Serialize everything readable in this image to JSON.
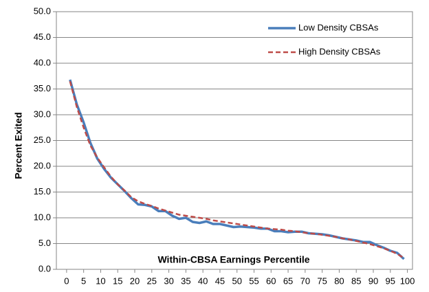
{
  "chart_data": {
    "type": "line",
    "x_label": "Within-CBSA Earnings Percentile",
    "y_label": "Percent Exited",
    "x": [
      1,
      3,
      5,
      7,
      9,
      11,
      13,
      15,
      17,
      19,
      21,
      23,
      25,
      27,
      29,
      31,
      33,
      35,
      37,
      39,
      41,
      43,
      45,
      47,
      49,
      51,
      53,
      55,
      57,
      59,
      61,
      63,
      65,
      67,
      69,
      71,
      73,
      75,
      77,
      79,
      81,
      83,
      85,
      87,
      89,
      91,
      93,
      95,
      97,
      99
    ],
    "series": [
      {
        "name": "Low Density CBSAs",
        "color": "#4a7ebb",
        "dash": "solid",
        "values": [
          36.8,
          32,
          28.5,
          24.5,
          21.5,
          19.5,
          17.8,
          16.5,
          15.2,
          13.8,
          12.6,
          12.5,
          12.2,
          11.3,
          11.3,
          10.4,
          9.8,
          10.0,
          9.2,
          9.0,
          9.3,
          8.8,
          8.8,
          8.5,
          8.2,
          8.3,
          8.2,
          8.1,
          7.9,
          7.9,
          7.4,
          7.4,
          7.2,
          7.3,
          7.3,
          7.0,
          6.9,
          6.8,
          6.6,
          6.3,
          6.0,
          5.8,
          5.6,
          5.3,
          5.3,
          4.7,
          4.2,
          3.6,
          3.2,
          2.0
        ]
      },
      {
        "name": "High Density CBSAs",
        "color": "#be4b48",
        "dash": "dashed",
        "values": [
          36.5,
          31.5,
          27.5,
          24.0,
          21.7,
          19.8,
          18.0,
          16.5,
          15.3,
          14.0,
          13.2,
          12.7,
          12.3,
          11.8,
          11.4,
          11.0,
          10.6,
          10.4,
          10.2,
          10.0,
          9.8,
          9.5,
          9.3,
          9.1,
          8.9,
          8.7,
          8.5,
          8.3,
          8.1,
          7.9,
          7.8,
          7.7,
          7.5,
          7.4,
          7.2,
          7.0,
          6.9,
          6.7,
          6.5,
          6.3,
          6.0,
          5.8,
          5.5,
          5.2,
          4.9,
          4.5,
          4.1,
          3.6,
          3.0,
          2.2
        ]
      }
    ],
    "xlim": [
      -3,
      101.5
    ],
    "xticks": [
      0,
      5,
      10,
      15,
      20,
      25,
      30,
      35,
      40,
      45,
      50,
      55,
      60,
      65,
      70,
      75,
      80,
      85,
      90,
      95,
      100
    ],
    "ylim": [
      0,
      50
    ],
    "yticks": [
      {
        "value": 0,
        "label": "0.0"
      },
      {
        "value": 5,
        "label": "5.0"
      },
      {
        "value": 10,
        "label": "10.0"
      },
      {
        "value": 15,
        "label": "15.0"
      },
      {
        "value": 20,
        "label": "20.0"
      },
      {
        "value": 25,
        "label": "25.0"
      },
      {
        "value": 30,
        "label": "30.0"
      },
      {
        "value": 35,
        "label": "35.0"
      },
      {
        "value": 40,
        "label": "40.0"
      },
      {
        "value": 45,
        "label": "45.0"
      },
      {
        "value": 50,
        "label": "50.0"
      }
    ],
    "grid": true,
    "legend": "upper right"
  }
}
